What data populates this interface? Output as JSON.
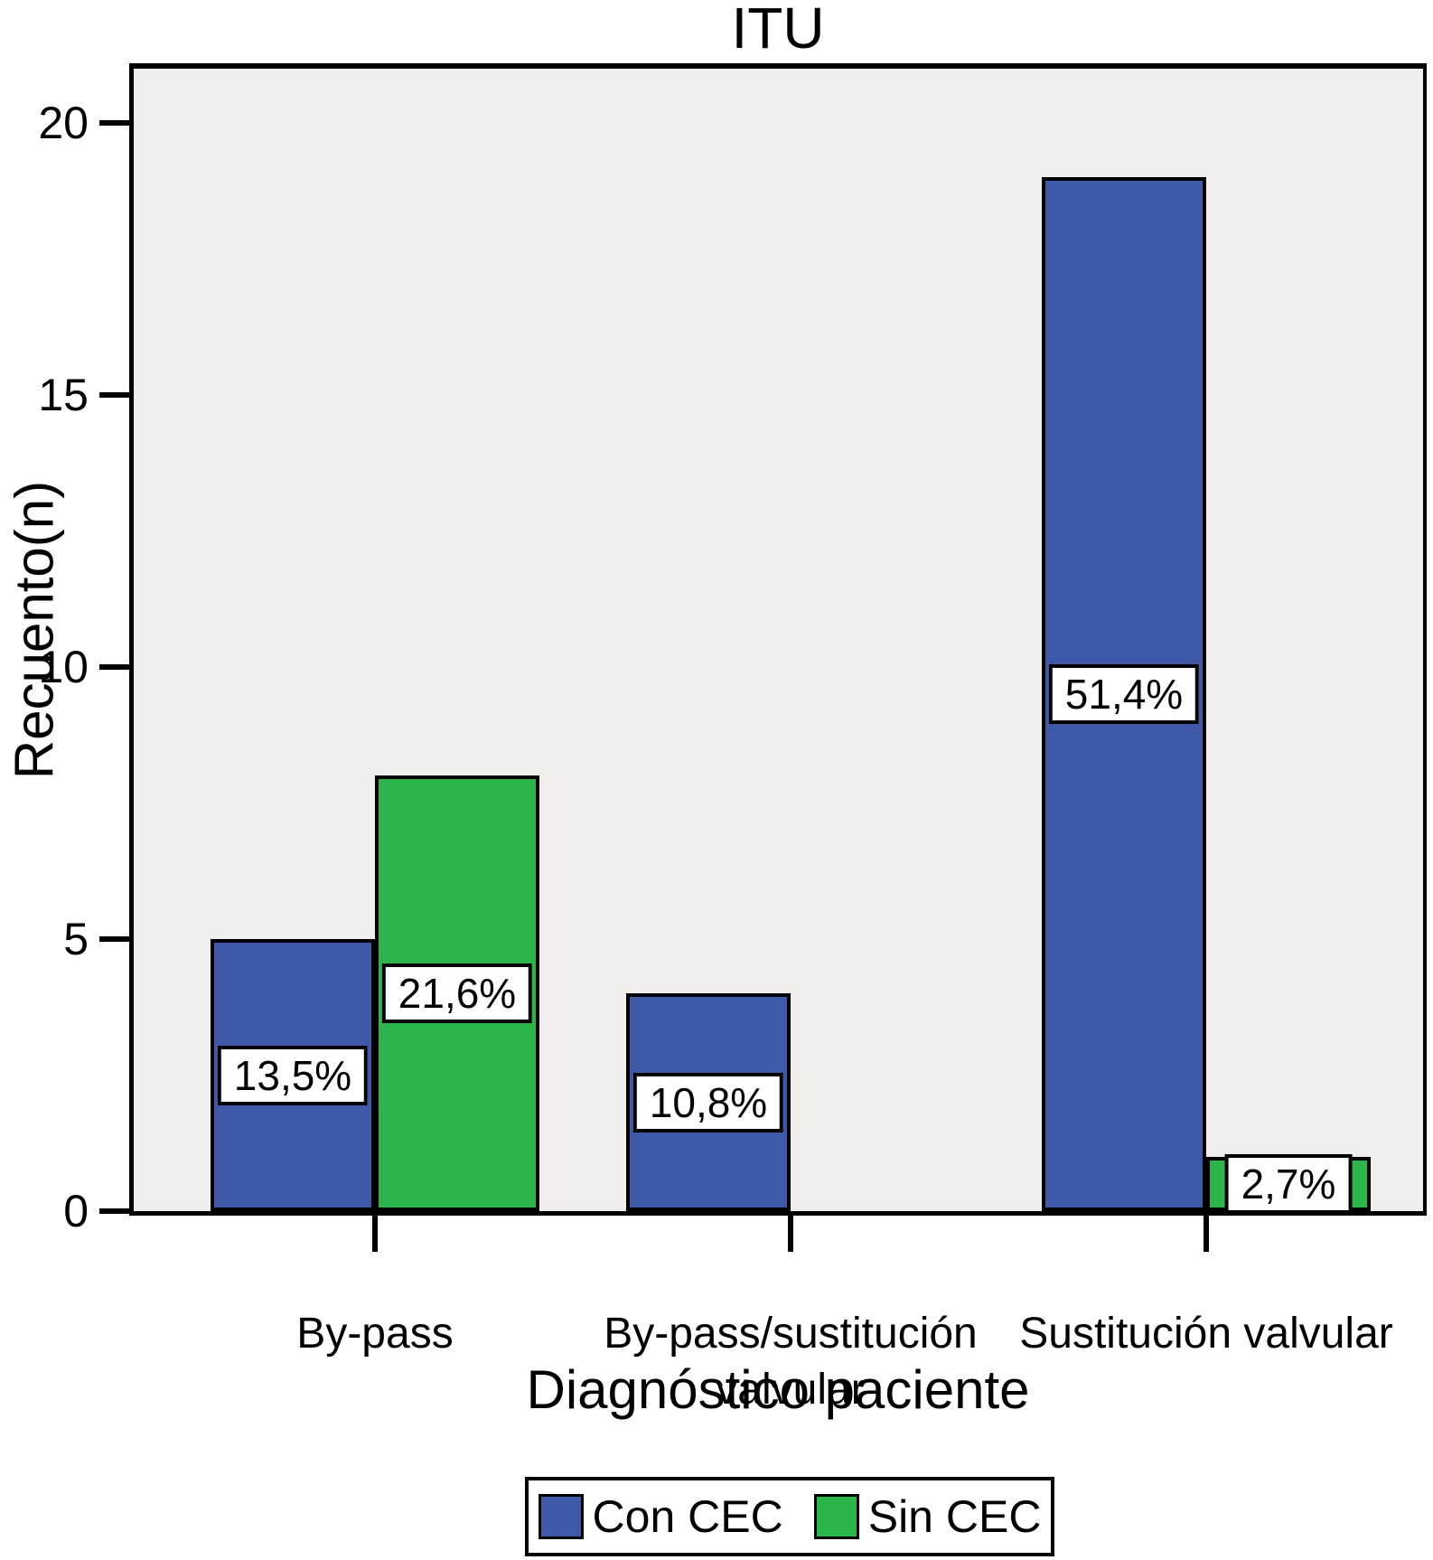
{
  "title": "ITU",
  "chart_data": {
    "type": "bar",
    "title": "ITU",
    "xlabel": "Diagnóstico paciente",
    "ylabel": "Recuento(n)",
    "ylim": [
      0,
      21
    ],
    "yticks": [
      0,
      5,
      10,
      15,
      20
    ],
    "grid": false,
    "legend_position": "bottom",
    "plot_background": "#EFEEEC",
    "bar_border_color": "#000000",
    "categories": [
      "By-pass",
      "By-pass/sustitución\nvalvular",
      "Sustitución valvular"
    ],
    "series": [
      {
        "name": "Con CEC",
        "color": "#3F58A8",
        "values": [
          5,
          4,
          19
        ],
        "value_labels": [
          "13,5%",
          "10,8%",
          "51,4%"
        ]
      },
      {
        "name": "Sin CEC",
        "color": "#2DB44A",
        "values": [
          8,
          0,
          1
        ],
        "value_labels": [
          "21,6%",
          "",
          "2,7%"
        ]
      }
    ]
  }
}
